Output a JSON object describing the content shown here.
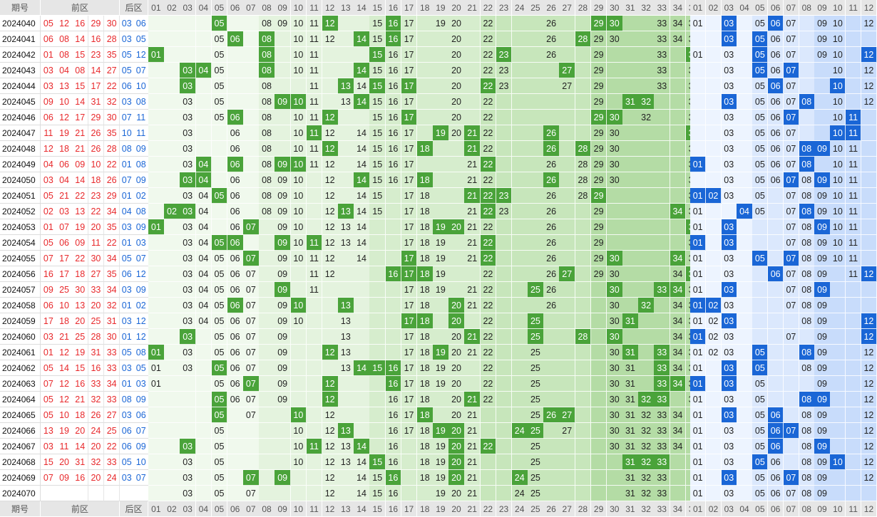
{
  "header": {
    "issue_label": "期号",
    "front_label": "前区",
    "back_label": "后区",
    "front_numbers": [
      "01",
      "02",
      "03",
      "04",
      "05",
      "06",
      "07",
      "08",
      "09",
      "10",
      "11",
      "12",
      "13",
      "14",
      "15",
      "16",
      "17",
      "18",
      "19",
      "20",
      "21",
      "22",
      "23",
      "24",
      "25",
      "26",
      "27",
      "28",
      "29",
      "30",
      "31",
      "32",
      "33",
      "34",
      "35"
    ],
    "back_numbers": [
      "01",
      "02",
      "03",
      "04",
      "05",
      "06",
      "07",
      "08",
      "09",
      "10",
      "11",
      "12"
    ]
  },
  "colors": {
    "front_draw": "#e8282b",
    "back_draw": "#1a66d6",
    "front_hit": "#4aa33a",
    "back_hit": "#1a66d6"
  },
  "rows": [
    {
      "issue": "2024040",
      "front": [
        "05",
        "12",
        "16",
        "29",
        "30"
      ],
      "back": [
        "03",
        "06"
      ],
      "front_shown": [
        "05",
        "08",
        "09",
        "10",
        "11",
        "15",
        "17",
        "19",
        "20",
        "22",
        "26",
        "29",
        "30",
        "33",
        "34",
        "35"
      ],
      "back_shown": [
        "01",
        "05",
        "06",
        "07",
        "09",
        "10",
        "12"
      ]
    },
    {
      "issue": "2024041",
      "front": [
        "06",
        "08",
        "14",
        "16",
        "28"
      ],
      "back": [
        "03",
        "05"
      ],
      "front_shown": [
        "05",
        "10",
        "11",
        "12",
        "15",
        "17",
        "20",
        "22",
        "26",
        "29",
        "30",
        "33",
        "34",
        "35"
      ],
      "back_shown": [
        "05",
        "06",
        "07",
        "09",
        "10"
      ]
    },
    {
      "issue": "2024042",
      "front": [
        "01",
        "08",
        "15",
        "23",
        "35"
      ],
      "back": [
        "05",
        "12"
      ],
      "front_shown": [
        "05",
        "08",
        "10",
        "11",
        "15",
        "16",
        "17",
        "20",
        "22",
        "26",
        "29",
        "33",
        "35"
      ],
      "back_shown": [
        "01",
        "03",
        "05",
        "06",
        "07",
        "09",
        "10"
      ]
    },
    {
      "issue": "2024043",
      "front": [
        "03",
        "04",
        "08",
        "14",
        "27"
      ],
      "back": [
        "05",
        "07"
      ],
      "front_shown": [
        "05",
        "08",
        "10",
        "11",
        "15",
        "16",
        "17",
        "20",
        "22",
        "23",
        "29",
        "33",
        "35"
      ],
      "back_shown": [
        "03",
        "05",
        "06",
        "07",
        "10",
        "12"
      ]
    },
    {
      "issue": "2024044",
      "front": [
        "03",
        "13",
        "15",
        "17",
        "22"
      ],
      "back": [
        "06",
        "10"
      ],
      "front_shown": [
        "03",
        "05",
        "08",
        "11",
        "14",
        "15",
        "16",
        "17",
        "20",
        "22",
        "23",
        "27",
        "29",
        "33",
        "35"
      ],
      "back_shown": [
        "03",
        "05",
        "06",
        "07",
        "10",
        "12"
      ]
    },
    {
      "issue": "2024045",
      "front": [
        "09",
        "10",
        "14",
        "31",
        "32"
      ],
      "back": [
        "03",
        "08"
      ],
      "front_shown": [
        "03",
        "05",
        "08",
        "11",
        "13",
        "14",
        "15",
        "16",
        "17",
        "20",
        "22",
        "29",
        "35"
      ],
      "back_shown": [
        "03",
        "05",
        "06",
        "07",
        "10",
        "12"
      ]
    },
    {
      "issue": "2024046",
      "front": [
        "06",
        "12",
        "17",
        "29",
        "30"
      ],
      "back": [
        "07",
        "11"
      ],
      "front_shown": [
        "03",
        "05",
        "08",
        "10",
        "11",
        "15",
        "16",
        "17",
        "20",
        "22",
        "29",
        "32",
        "35"
      ],
      "back_shown": [
        "03",
        "05",
        "06",
        "07",
        "10"
      ]
    },
    {
      "issue": "2024047",
      "front": [
        "11",
        "19",
        "21",
        "26",
        "35"
      ],
      "back": [
        "10",
        "11"
      ],
      "front_shown": [
        "03",
        "06",
        "08",
        "10",
        "12",
        "14",
        "15",
        "16",
        "17",
        "20",
        "22",
        "29",
        "30",
        "35"
      ],
      "back_shown": [
        "03",
        "05",
        "06",
        "07",
        "10",
        "11"
      ]
    },
    {
      "issue": "2024048",
      "front": [
        "12",
        "18",
        "21",
        "26",
        "28"
      ],
      "back": [
        "08",
        "09"
      ],
      "front_shown": [
        "03",
        "06",
        "08",
        "10",
        "11",
        "12",
        "14",
        "15",
        "16",
        "17",
        "22",
        "29",
        "30",
        "35"
      ],
      "back_shown": [
        "03",
        "05",
        "06",
        "07",
        "10",
        "11"
      ]
    },
    {
      "issue": "2024049",
      "front": [
        "04",
        "06",
        "09",
        "10",
        "22"
      ],
      "back": [
        "01",
        "08"
      ],
      "front_shown": [
        "03",
        "06",
        "08",
        "10",
        "11",
        "12",
        "14",
        "15",
        "16",
        "17",
        "21",
        "22",
        "26",
        "28",
        "29",
        "30",
        "35"
      ],
      "back_shown": [
        "03",
        "05",
        "06",
        "07",
        "08",
        "10",
        "11"
      ]
    },
    {
      "issue": "2024050",
      "front": [
        "03",
        "04",
        "14",
        "18",
        "26"
      ],
      "back": [
        "07",
        "09"
      ],
      "front_shown": [
        "03",
        "04",
        "06",
        "08",
        "09",
        "10",
        "12",
        "14",
        "15",
        "16",
        "17",
        "21",
        "22",
        "26",
        "28",
        "29",
        "30",
        "35"
      ],
      "back_shown": [
        "03",
        "05",
        "06",
        "07",
        "08",
        "10",
        "11"
      ]
    },
    {
      "issue": "2024051",
      "front": [
        "05",
        "21",
        "22",
        "23",
        "29"
      ],
      "back": [
        "01",
        "02"
      ],
      "front_shown": [
        "03",
        "04",
        "06",
        "08",
        "09",
        "10",
        "12",
        "14",
        "15",
        "17",
        "18",
        "21",
        "22",
        "26",
        "28",
        "35"
      ],
      "back_shown": [
        "03",
        "05",
        "07",
        "08",
        "09",
        "10",
        "11"
      ]
    },
    {
      "issue": "2024052",
      "front": [
        "02",
        "03",
        "13",
        "22",
        "34"
      ],
      "back": [
        "04",
        "08"
      ],
      "front_shown": [
        "03",
        "04",
        "06",
        "08",
        "09",
        "10",
        "12",
        "14",
        "15",
        "17",
        "18",
        "21",
        "22",
        "23",
        "26",
        "29",
        "35"
      ],
      "back_shown": [
        "01",
        "05",
        "07",
        "08",
        "09",
        "10",
        "11"
      ]
    },
    {
      "issue": "2024053",
      "front": [
        "01",
        "07",
        "19",
        "20",
        "35"
      ],
      "back": [
        "03",
        "09"
      ],
      "front_shown": [
        "03",
        "04",
        "06",
        "09",
        "10",
        "12",
        "13",
        "14",
        "17",
        "18",
        "21",
        "22",
        "26",
        "29"
      ],
      "back_shown": [
        "01",
        "07",
        "08",
        "09",
        "10",
        "11"
      ]
    },
    {
      "issue": "2024054",
      "front": [
        "05",
        "06",
        "09",
        "11",
        "22"
      ],
      "back": [
        "01",
        "03"
      ],
      "front_shown": [
        "03",
        "04",
        "06",
        "09",
        "10",
        "12",
        "13",
        "14",
        "17",
        "18",
        "19",
        "21",
        "22",
        "26",
        "29",
        "35"
      ],
      "back_shown": [
        "01",
        "03",
        "07",
        "08",
        "09",
        "10",
        "11"
      ]
    },
    {
      "issue": "2024055",
      "front": [
        "07",
        "17",
        "22",
        "30",
        "34"
      ],
      "back": [
        "05",
        "07"
      ],
      "front_shown": [
        "03",
        "04",
        "05",
        "06",
        "09",
        "10",
        "11",
        "12",
        "14",
        "18",
        "19",
        "21",
        "22",
        "26",
        "29",
        "35"
      ],
      "back_shown": [
        "01",
        "03",
        "07",
        "08",
        "09",
        "10",
        "11"
      ]
    },
    {
      "issue": "2024056",
      "front": [
        "16",
        "17",
        "18",
        "27",
        "35"
      ],
      "back": [
        "06",
        "12"
      ],
      "front_shown": [
        "03",
        "04",
        "05",
        "06",
        "07",
        "09",
        "11",
        "12",
        "17",
        "18",
        "19",
        "22",
        "26",
        "29",
        "30",
        "34",
        "35"
      ],
      "back_shown": [
        "01",
        "03",
        "07",
        "08",
        "09",
        "11"
      ]
    },
    {
      "issue": "2024057",
      "front": [
        "09",
        "25",
        "30",
        "33",
        "34"
      ],
      "back": [
        "03",
        "09"
      ],
      "front_shown": [
        "03",
        "04",
        "05",
        "06",
        "07",
        "09",
        "11",
        "17",
        "18",
        "19",
        "21",
        "22",
        "26",
        "34",
        "35"
      ],
      "back_shown": [
        "01",
        "03",
        "07",
        "08",
        "09"
      ]
    },
    {
      "issue": "2024058",
      "front": [
        "06",
        "10",
        "13",
        "20",
        "32"
      ],
      "back": [
        "01",
        "02"
      ],
      "front_shown": [
        "03",
        "04",
        "05",
        "06",
        "07",
        "09",
        "17",
        "18",
        "21",
        "22",
        "26",
        "30",
        "34",
        "35"
      ],
      "back_shown": [
        "01",
        "03",
        "07",
        "08",
        "09"
      ]
    },
    {
      "issue": "2024059",
      "front": [
        "17",
        "18",
        "20",
        "25",
        "31"
      ],
      "back": [
        "03",
        "12"
      ],
      "front_shown": [
        "03",
        "04",
        "05",
        "06",
        "07",
        "09",
        "10",
        "13",
        "17",
        "18",
        "20",
        "22",
        "30",
        "34",
        "35"
      ],
      "back_shown": [
        "01",
        "02",
        "03",
        "08",
        "09"
      ]
    },
    {
      "issue": "2024060",
      "front": [
        "03",
        "21",
        "25",
        "28",
        "30"
      ],
      "back": [
        "01",
        "12"
      ],
      "front_shown": [
        "03",
        "05",
        "06",
        "07",
        "09",
        "13",
        "17",
        "18",
        "20",
        "22",
        "25",
        "30",
        "34",
        "35"
      ],
      "back_shown": [
        "01",
        "02",
        "03",
        "07",
        "09",
        "12"
      ]
    },
    {
      "issue": "2024061",
      "front": [
        "01",
        "12",
        "19",
        "31",
        "33"
      ],
      "back": [
        "05",
        "08"
      ],
      "front_shown": [
        "03",
        "05",
        "06",
        "07",
        "09",
        "13",
        "17",
        "18",
        "20",
        "21",
        "22",
        "25",
        "30",
        "34",
        "35"
      ],
      "back_shown": [
        "01",
        "02",
        "03",
        "09",
        "12"
      ]
    },
    {
      "issue": "2024062",
      "front": [
        "05",
        "14",
        "15",
        "16",
        "33"
      ],
      "back": [
        "03",
        "05"
      ],
      "front_shown": [
        "01",
        "03",
        "05",
        "06",
        "07",
        "09",
        "13",
        "17",
        "18",
        "19",
        "20",
        "22",
        "25",
        "30",
        "31",
        "33",
        "34",
        "35"
      ],
      "back_shown": [
        "01",
        "03",
        "05",
        "08",
        "09",
        "12"
      ]
    },
    {
      "issue": "2024063",
      "front": [
        "07",
        "12",
        "16",
        "33",
        "34"
      ],
      "back": [
        "01",
        "03"
      ],
      "front_shown": [
        "01",
        "05",
        "06",
        "07",
        "09",
        "16",
        "17",
        "18",
        "19",
        "20",
        "22",
        "25",
        "30",
        "31",
        "33",
        "34",
        "35"
      ],
      "back_shown": [
        "01",
        "03",
        "05",
        "09",
        "12"
      ]
    },
    {
      "issue": "2024064",
      "front": [
        "05",
        "12",
        "21",
        "32",
        "33"
      ],
      "back": [
        "08",
        "09"
      ],
      "front_shown": [
        "05",
        "06",
        "07",
        "09",
        "12",
        "16",
        "17",
        "18",
        "20",
        "22",
        "25",
        "30",
        "31",
        "33",
        "35"
      ],
      "back_shown": [
        "01",
        "03",
        "05",
        "09",
        "12"
      ]
    },
    {
      "issue": "2024065",
      "front": [
        "05",
        "10",
        "18",
        "26",
        "27"
      ],
      "back": [
        "03",
        "06"
      ],
      "front_shown": [
        "05",
        "07",
        "12",
        "16",
        "17",
        "18",
        "20",
        "21",
        "25",
        "30",
        "31",
        "32",
        "33",
        "34"
      ],
      "back_shown": [
        "01",
        "03",
        "05",
        "08",
        "09",
        "12"
      ]
    },
    {
      "issue": "2024066",
      "front": [
        "13",
        "19",
        "20",
        "24",
        "25"
      ],
      "back": [
        "06",
        "07"
      ],
      "front_shown": [
        "05",
        "10",
        "12",
        "16",
        "17",
        "18",
        "20",
        "21",
        "25",
        "27",
        "30",
        "31",
        "32",
        "33",
        "34"
      ],
      "back_shown": [
        "01",
        "03",
        "05",
        "06",
        "08",
        "09",
        "12"
      ]
    },
    {
      "issue": "2024067",
      "front": [
        "03",
        "11",
        "14",
        "20",
        "22"
      ],
      "back": [
        "06",
        "09"
      ],
      "front_shown": [
        "05",
        "10",
        "12",
        "13",
        "16",
        "18",
        "19",
        "20",
        "21",
        "25",
        "30",
        "31",
        "32",
        "33",
        "34"
      ],
      "back_shown": [
        "01",
        "03",
        "05",
        "06",
        "08",
        "09",
        "12"
      ]
    },
    {
      "issue": "2024068",
      "front": [
        "15",
        "20",
        "31",
        "32",
        "33"
      ],
      "back": [
        "05",
        "10"
      ],
      "front_shown": [
        "03",
        "05",
        "10",
        "12",
        "13",
        "14",
        "16",
        "18",
        "19",
        "20",
        "21",
        "25",
        "31",
        "32",
        "33"
      ],
      "back_shown": [
        "01",
        "03",
        "05",
        "06",
        "08",
        "09",
        "12"
      ]
    },
    {
      "issue": "2024069",
      "front": [
        "07",
        "09",
        "16",
        "20",
        "24"
      ],
      "back": [
        "03",
        "07"
      ],
      "front_shown": [
        "03",
        "05",
        "12",
        "14",
        "15",
        "16",
        "18",
        "19",
        "20",
        "21",
        "25",
        "31",
        "32",
        "33"
      ],
      "back_shown": [
        "01",
        "03",
        "05",
        "06",
        "08",
        "09",
        "12"
      ]
    },
    {
      "issue": "2024070",
      "front": [],
      "back": [],
      "front_shown": [
        "03",
        "05",
        "07",
        "12",
        "14",
        "15",
        "16",
        "19",
        "20",
        "21",
        "24",
        "25",
        "31",
        "32",
        "33"
      ],
      "back_shown": [
        "01",
        "03",
        "05",
        "06",
        "07",
        "08",
        "09"
      ]
    }
  ]
}
